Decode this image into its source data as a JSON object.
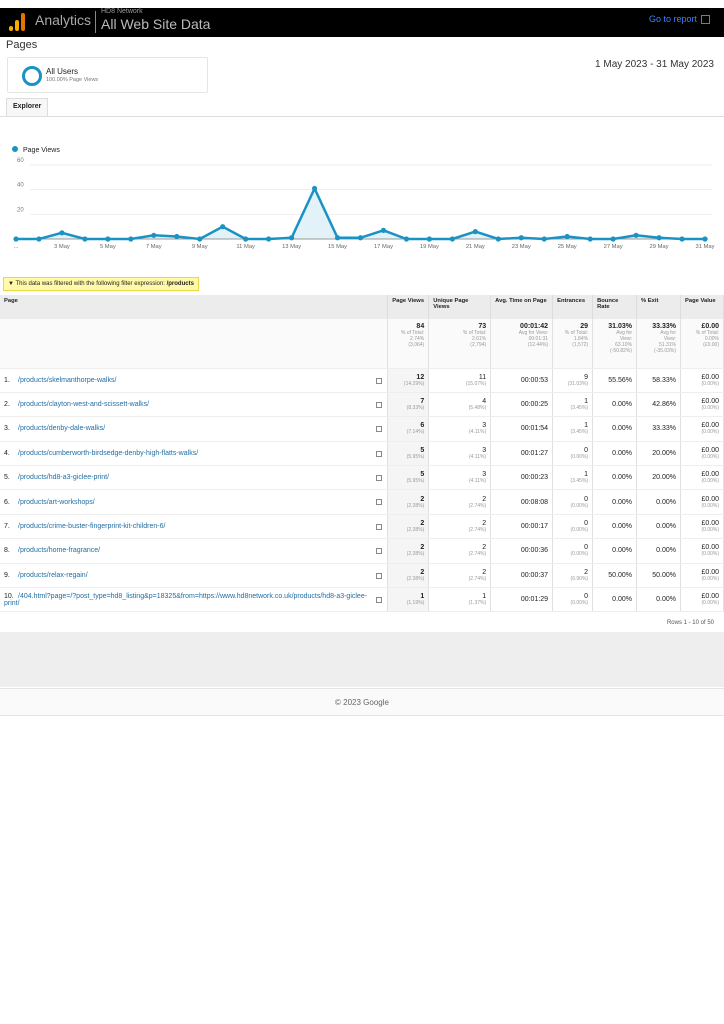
{
  "header": {
    "brand": "Analytics",
    "account": "HD8 Network",
    "property": "All Web Site Data",
    "goto_label": "Go to report"
  },
  "page_title": "Pages",
  "segment": {
    "name": "All Users",
    "sub": "100.00% Page Views"
  },
  "date_range": "1 May 2023 - 31 May 2023",
  "tabs": [
    "Explorer"
  ],
  "chart_data": {
    "type": "line",
    "series": [
      {
        "name": "Page Views",
        "color": "#1a93c4",
        "values": [
          0,
          0,
          5,
          0,
          0,
          0,
          3,
          2,
          0,
          10,
          0,
          0,
          1,
          41,
          1,
          1,
          7,
          0,
          0,
          0,
          6,
          0,
          1,
          0,
          2,
          0,
          0,
          3,
          1,
          0,
          0
        ]
      }
    ],
    "x": [
      "1 May",
      "2 May",
      "3 May",
      "4 May",
      "5 May",
      "6 May",
      "7 May",
      "8 May",
      "9 May",
      "10 May",
      "11 May",
      "12 May",
      "13 May",
      "14 May",
      "15 May",
      "16 May",
      "17 May",
      "18 May",
      "19 May",
      "20 May",
      "21 May",
      "22 May",
      "23 May",
      "24 May",
      "25 May",
      "26 May",
      "27 May",
      "28 May",
      "29 May",
      "30 May",
      "31 May"
    ],
    "x_tick_labels": [
      "...",
      "3 May",
      "5 May",
      "7 May",
      "9 May",
      "11 May",
      "13 May",
      "15 May",
      "17 May",
      "19 May",
      "21 May",
      "23 May",
      "25 May",
      "27 May",
      "29 May",
      "31 May"
    ],
    "y_ticks": [
      "20",
      "40",
      "60"
    ],
    "ylim": [
      0,
      60
    ],
    "legend": "top-left"
  },
  "filter": {
    "text": "This data was filtered with the following filter expression: ",
    "expr": "/products"
  },
  "table": {
    "headers": [
      "Page",
      "Page Views",
      "Unique Page Views",
      "Avg. Time on Page",
      "Entrances",
      "Bounce Rate",
      "% Exit",
      "Page Value"
    ],
    "totals": [
      {
        "v": "84",
        "s1": "% of Total:",
        "s2": "2.74%",
        "s3": "(3,064)"
      },
      {
        "v": "73",
        "s1": "% of Total:",
        "s2": "2.61%",
        "s3": "(2,794)"
      },
      {
        "v": "00:01:42",
        "s1": "Avg for View:",
        "s2": "00:01:31",
        "s3": "(12.44%)"
      },
      {
        "v": "29",
        "s1": "% of Total:",
        "s2": "1.84%",
        "s3": "(1,572)"
      },
      {
        "v": "31.03%",
        "s1": "Avg for",
        "s2": "View:",
        "s3": "63.10%",
        "s4": "(-50.82%)"
      },
      {
        "v": "33.33%",
        "s1": "Avg for",
        "s2": "View:",
        "s3": "51.31%",
        "s4": "(-35.03%)"
      },
      {
        "v": "£0.00",
        "s1": "% of Total:",
        "s2": "0.00%",
        "s3": "(£0.00)"
      }
    ],
    "rows": [
      {
        "n": "1.",
        "page": "/products/skelmanthorpe-walks/",
        "pv": "12",
        "pvp": "(14.29%)",
        "upv": "11",
        "upvp": "(15.07%)",
        "t": "00:00:53",
        "e": "9",
        "ep": "(31.03%)",
        "b": "55.56%",
        "x": "58.33%",
        "val": "£0.00",
        "valp": "(0.00%)"
      },
      {
        "n": "2.",
        "page": "/products/clayton-west-and-scissett-walks/",
        "pv": "7",
        "pvp": "(8.33%)",
        "upv": "4",
        "upvp": "(5.48%)",
        "t": "00:00:25",
        "e": "1",
        "ep": "(3.45%)",
        "b": "0.00%",
        "x": "42.86%",
        "val": "£0.00",
        "valp": "(0.00%)"
      },
      {
        "n": "3.",
        "page": "/products/denby-dale-walks/",
        "pv": "6",
        "pvp": "(7.14%)",
        "upv": "3",
        "upvp": "(4.11%)",
        "t": "00:01:54",
        "e": "1",
        "ep": "(3.45%)",
        "b": "0.00%",
        "x": "33.33%",
        "val": "£0.00",
        "valp": "(0.00%)"
      },
      {
        "n": "4.",
        "page": "/products/cumberworth-birdsedge-denby-high-flatts-walks/",
        "pv": "5",
        "pvp": "(5.95%)",
        "upv": "3",
        "upvp": "(4.11%)",
        "t": "00:01:27",
        "e": "0",
        "ep": "(0.00%)",
        "b": "0.00%",
        "x": "20.00%",
        "val": "£0.00",
        "valp": "(0.00%)"
      },
      {
        "n": "5.",
        "page": "/products/hd8-a3-giclee-print/",
        "pv": "5",
        "pvp": "(5.95%)",
        "upv": "3",
        "upvp": "(4.11%)",
        "t": "00:00:23",
        "e": "1",
        "ep": "(3.45%)",
        "b": "0.00%",
        "x": "20.00%",
        "val": "£0.00",
        "valp": "(0.00%)"
      },
      {
        "n": "6.",
        "page": "/products/art-workshops/",
        "pv": "2",
        "pvp": "(2.38%)",
        "upv": "2",
        "upvp": "(2.74%)",
        "t": "00:08:08",
        "e": "0",
        "ep": "(0.00%)",
        "b": "0.00%",
        "x": "0.00%",
        "val": "£0.00",
        "valp": "(0.00%)"
      },
      {
        "n": "7.",
        "page": "/products/crime-buster-fingerprint-kit-children-6/",
        "pv": "2",
        "pvp": "(2.38%)",
        "upv": "2",
        "upvp": "(2.74%)",
        "t": "00:00:17",
        "e": "0",
        "ep": "(0.00%)",
        "b": "0.00%",
        "x": "0.00%",
        "val": "£0.00",
        "valp": "(0.00%)"
      },
      {
        "n": "8.",
        "page": "/products/home-fragrance/",
        "pv": "2",
        "pvp": "(2.38%)",
        "upv": "2",
        "upvp": "(2.74%)",
        "t": "00:00:36",
        "e": "0",
        "ep": "(0.00%)",
        "b": "0.00%",
        "x": "0.00%",
        "val": "£0.00",
        "valp": "(0.00%)"
      },
      {
        "n": "9.",
        "page": "/products/relax-regain/",
        "pv": "2",
        "pvp": "(2.38%)",
        "upv": "2",
        "upvp": "(2.74%)",
        "t": "00:00:37",
        "e": "2",
        "ep": "(6.90%)",
        "b": "50.00%",
        "x": "50.00%",
        "val": "£0.00",
        "valp": "(0.00%)"
      },
      {
        "n": "10.",
        "page": "/404.html?page=/?post_type=hd8_listing&p=18325&from=https://www.hd8network.co.uk/products/hd8-a3-giclee-print/",
        "pv": "1",
        "pvp": "(1.19%)",
        "upv": "1",
        "upvp": "(1.37%)",
        "t": "00:01:29",
        "e": "0",
        "ep": "(0.00%)",
        "b": "0.00%",
        "x": "0.00%",
        "val": "£0.00",
        "valp": "(0.00%)"
      }
    ],
    "rows_label": "Rows 1 - 10 of 50"
  },
  "footer": "© 2023 Google"
}
